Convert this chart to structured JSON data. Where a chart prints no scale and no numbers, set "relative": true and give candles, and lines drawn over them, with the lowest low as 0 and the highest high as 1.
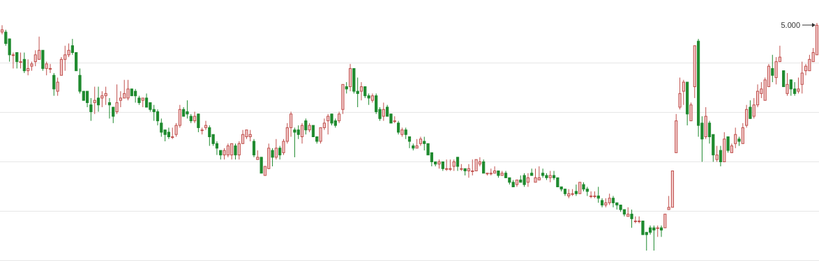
{
  "chart_data": {
    "type": "candlestick",
    "relative": true,
    "grid": "y",
    "annotations": [
      "5.000"
    ],
    "categories": [
      null,
      null,
      null,
      null,
      null,
      null,
      null,
      null,
      null,
      null,
      null,
      null,
      null,
      null,
      null,
      null,
      null,
      null,
      null,
      null,
      null,
      null,
      null,
      null,
      null,
      null,
      null,
      null,
      null,
      null,
      null,
      null,
      null,
      null,
      null,
      null,
      null,
      null,
      null,
      null,
      null,
      null,
      null,
      null,
      null,
      null,
      null,
      null,
      null,
      null,
      null,
      null,
      null,
      null,
      null,
      null,
      null,
      null,
      null,
      null,
      null,
      null,
      null,
      null,
      null,
      null,
      null,
      null,
      null,
      null,
      null,
      null,
      null,
      null,
      null,
      null,
      null,
      null,
      null,
      null,
      null,
      null,
      null,
      null,
      null,
      null,
      null,
      null,
      null,
      null,
      null,
      null,
      null,
      null,
      null,
      null,
      null,
      null,
      null,
      null,
      null,
      null,
      null,
      null,
      null,
      null,
      null,
      null,
      null,
      null,
      null,
      null,
      null,
      null,
      null,
      null,
      null,
      null,
      null,
      null,
      null,
      null,
      null,
      null,
      null,
      null,
      null,
      null,
      null,
      null,
      null,
      null,
      null,
      null,
      null,
      null,
      null,
      null,
      null,
      null,
      null,
      null,
      null,
      null,
      null,
      null,
      null,
      null,
      null,
      null,
      null,
      null,
      null,
      null,
      null,
      null,
      null,
      null,
      null,
      null,
      null,
      null,
      null,
      null,
      null,
      null,
      null,
      null,
      null,
      null,
      null,
      null,
      null,
      null,
      null,
      null,
      null,
      null,
      null,
      null,
      null,
      null,
      null,
      null,
      null,
      null,
      null,
      null,
      null,
      null,
      null,
      null,
      null,
      null,
      null,
      null,
      null,
      null,
      null,
      null,
      null,
      null,
      null,
      null,
      null,
      null,
      null,
      null,
      null,
      null,
      null,
      null,
      null,
      null,
      null,
      null,
      null,
      null,
      null,
      null,
      null
    ],
    "ohlc": [
      [
        0.96,
        0.99,
        0.95,
        0.97
      ],
      [
        0.96,
        0.97,
        0.9,
        0.91
      ],
      [
        0.93,
        0.93,
        0.83,
        0.86
      ],
      [
        0.86,
        0.87,
        0.8,
        0.86
      ],
      [
        0.87,
        0.87,
        0.8,
        0.83
      ],
      [
        0.83,
        0.87,
        0.8,
        0.83
      ],
      [
        0.84,
        0.87,
        0.78,
        0.79
      ],
      [
        0.79,
        0.84,
        0.77,
        0.8
      ],
      [
        0.81,
        0.83,
        0.79,
        0.82
      ],
      [
        0.83,
        0.88,
        0.81,
        0.86
      ],
      [
        0.84,
        0.94,
        0.84,
        0.88
      ],
      [
        0.88,
        0.88,
        0.79,
        0.8
      ],
      [
        0.8,
        0.83,
        0.77,
        0.82
      ],
      [
        0.8,
        0.82,
        0.78,
        0.8
      ],
      [
        0.77,
        0.78,
        0.68,
        0.71
      ],
      [
        0.7,
        0.76,
        0.68,
        0.74
      ],
      [
        0.77,
        0.85,
        0.77,
        0.84
      ],
      [
        0.84,
        0.9,
        0.79,
        0.86
      ],
      [
        0.86,
        0.91,
        0.85,
        0.88
      ],
      [
        0.9,
        0.93,
        0.86,
        0.87
      ],
      [
        0.87,
        0.87,
        0.79,
        0.79
      ],
      [
        0.77,
        0.8,
        0.69,
        0.7
      ],
      [
        0.7,
        0.7,
        0.66,
        0.66
      ],
      [
        0.7,
        0.7,
        0.63,
        0.65
      ],
      [
        0.64,
        0.67,
        0.57,
        0.61
      ],
      [
        0.65,
        0.72,
        0.6,
        0.66
      ],
      [
        0.67,
        0.72,
        0.61,
        0.64
      ],
      [
        0.67,
        0.7,
        0.63,
        0.68
      ],
      [
        0.68,
        0.72,
        0.64,
        0.69
      ],
      [
        0.65,
        0.67,
        0.58,
        0.64
      ],
      [
        0.63,
        0.63,
        0.56,
        0.59
      ],
      [
        0.61,
        0.73,
        0.6,
        0.65
      ],
      [
        0.66,
        0.7,
        0.63,
        0.67
      ],
      [
        0.67,
        0.75,
        0.67,
        0.69
      ],
      [
        0.67,
        0.75,
        0.66,
        0.71
      ],
      [
        0.71,
        0.71,
        0.68,
        0.68
      ],
      [
        0.7,
        0.71,
        0.65,
        0.68
      ],
      [
        0.67,
        0.68,
        0.64,
        0.65
      ],
      [
        0.66,
        0.67,
        0.63,
        0.67
      ],
      [
        0.67,
        0.69,
        0.63,
        0.63
      ],
      [
        0.65,
        0.65,
        0.61,
        0.62
      ],
      [
        0.62,
        0.64,
        0.57,
        0.61
      ],
      [
        0.61,
        0.62,
        0.55,
        0.57
      ],
      [
        0.56,
        0.58,
        0.5,
        0.52
      ],
      [
        0.53,
        0.53,
        0.48,
        0.51
      ],
      [
        0.52,
        0.54,
        0.49,
        0.5
      ],
      [
        0.5,
        0.54,
        0.49,
        0.5
      ],
      [
        0.51,
        0.56,
        0.5,
        0.55
      ],
      [
        0.55,
        0.64,
        0.54,
        0.62
      ],
      [
        0.62,
        0.63,
        0.59,
        0.59
      ],
      [
        0.61,
        0.66,
        0.58,
        0.6
      ],
      [
        0.59,
        0.6,
        0.56,
        0.57
      ],
      [
        0.57,
        0.61,
        0.56,
        0.59
      ],
      [
        0.6,
        0.6,
        0.52,
        0.54
      ],
      [
        0.53,
        0.54,
        0.51,
        0.53
      ],
      [
        0.54,
        0.57,
        0.53,
        0.55
      ],
      [
        0.54,
        0.55,
        0.46,
        0.5
      ],
      [
        0.51,
        0.51,
        0.46,
        0.47
      ],
      [
        0.47,
        0.48,
        0.42,
        0.45
      ],
      [
        0.44,
        0.44,
        0.4,
        0.42
      ],
      [
        0.42,
        0.45,
        0.4,
        0.44
      ],
      [
        0.42,
        0.47,
        0.41,
        0.46
      ],
      [
        0.42,
        0.47,
        0.4,
        0.47
      ],
      [
        0.46,
        0.47,
        0.4,
        0.42
      ],
      [
        0.42,
        0.48,
        0.4,
        0.47
      ],
      [
        0.47,
        0.53,
        0.47,
        0.51
      ],
      [
        0.5,
        0.53,
        0.49,
        0.53
      ],
      [
        0.5,
        0.53,
        0.48,
        0.51
      ],
      [
        0.48,
        0.49,
        0.41,
        0.42
      ],
      [
        0.4,
        0.44,
        0.4,
        0.41
      ],
      [
        0.41,
        0.41,
        0.34,
        0.34
      ],
      [
        0.33,
        0.37,
        0.33,
        0.37
      ],
      [
        0.36,
        0.47,
        0.36,
        0.45
      ],
      [
        0.44,
        0.45,
        0.37,
        0.41
      ],
      [
        0.41,
        0.49,
        0.4,
        0.45
      ],
      [
        0.45,
        0.46,
        0.4,
        0.42
      ],
      [
        0.43,
        0.49,
        0.42,
        0.48
      ],
      [
        0.48,
        0.56,
        0.47,
        0.54
      ],
      [
        0.54,
        0.61,
        0.5,
        0.6
      ],
      [
        0.53,
        0.54,
        0.41,
        0.52
      ],
      [
        0.53,
        0.55,
        0.49,
        0.51
      ],
      [
        0.5,
        0.56,
        0.47,
        0.55
      ],
      [
        0.57,
        0.58,
        0.51,
        0.53
      ],
      [
        0.53,
        0.56,
        0.52,
        0.55
      ],
      [
        0.55,
        0.55,
        0.5,
        0.5
      ],
      [
        0.5,
        0.5,
        0.47,
        0.48
      ],
      [
        0.48,
        0.54,
        0.47,
        0.54
      ],
      [
        0.54,
        0.58,
        0.53,
        0.56
      ],
      [
        0.57,
        0.6,
        0.51,
        0.59
      ],
      [
        0.6,
        0.6,
        0.55,
        0.56
      ],
      [
        0.57,
        0.58,
        0.54,
        0.55
      ],
      [
        0.57,
        0.61,
        0.56,
        0.6
      ],
      [
        0.62,
        0.73,
        0.6,
        0.73
      ],
      [
        0.72,
        0.74,
        0.69,
        0.71
      ],
      [
        0.72,
        0.82,
        0.7,
        0.8
      ],
      [
        0.8,
        0.8,
        0.69,
        0.7
      ],
      [
        0.7,
        0.76,
        0.63,
        0.69
      ],
      [
        0.7,
        0.74,
        0.66,
        0.72
      ],
      [
        0.72,
        0.72,
        0.67,
        0.68
      ],
      [
        0.68,
        0.69,
        0.64,
        0.67
      ],
      [
        0.66,
        0.69,
        0.65,
        0.68
      ],
      [
        0.68,
        0.69,
        0.6,
        0.61
      ],
      [
        0.62,
        0.63,
        0.57,
        0.58
      ],
      [
        0.59,
        0.65,
        0.57,
        0.62
      ],
      [
        0.63,
        0.64,
        0.59,
        0.59
      ],
      [
        0.6,
        0.6,
        0.56,
        0.56
      ],
      [
        0.57,
        0.59,
        0.56,
        0.57
      ],
      [
        0.56,
        0.57,
        0.51,
        0.52
      ],
      [
        0.51,
        0.54,
        0.5,
        0.53
      ],
      [
        0.53,
        0.54,
        0.49,
        0.51
      ],
      [
        0.5,
        0.5,
        0.45,
        0.48
      ],
      [
        0.46,
        0.47,
        0.44,
        0.45
      ],
      [
        0.45,
        0.49,
        0.45,
        0.46
      ],
      [
        0.47,
        0.5,
        0.46,
        0.49
      ],
      [
        0.48,
        0.5,
        0.44,
        0.47
      ],
      [
        0.47,
        0.47,
        0.42,
        0.42
      ],
      [
        0.43,
        0.43,
        0.37,
        0.39
      ],
      [
        0.39,
        0.39,
        0.37,
        0.38
      ],
      [
        0.38,
        0.4,
        0.36,
        0.39
      ],
      [
        0.39,
        0.39,
        0.35,
        0.36
      ],
      [
        0.36,
        0.4,
        0.35,
        0.36
      ],
      [
        0.36,
        0.4,
        0.35,
        0.36
      ],
      [
        0.37,
        0.4,
        0.35,
        0.39
      ],
      [
        0.41,
        0.41,
        0.35,
        0.37
      ],
      [
        0.36,
        0.38,
        0.35,
        0.36
      ],
      [
        0.36,
        0.36,
        0.33,
        0.35
      ],
      [
        0.35,
        0.38,
        0.32,
        0.36
      ],
      [
        0.35,
        0.4,
        0.33,
        0.35
      ],
      [
        0.35,
        0.4,
        0.35,
        0.4
      ],
      [
        0.38,
        0.41,
        0.37,
        0.39
      ],
      [
        0.39,
        0.4,
        0.34,
        0.34
      ],
      [
        0.34,
        0.34,
        0.33,
        0.34
      ],
      [
        0.34,
        0.36,
        0.33,
        0.34
      ],
      [
        0.34,
        0.37,
        0.34,
        0.35
      ],
      [
        0.35,
        0.35,
        0.32,
        0.33
      ],
      [
        0.33,
        0.35,
        0.33,
        0.34
      ],
      [
        0.34,
        0.35,
        0.32,
        0.32
      ],
      [
        0.32,
        0.32,
        0.29,
        0.3
      ],
      [
        0.3,
        0.31,
        0.28,
        0.28
      ],
      [
        0.29,
        0.31,
        0.28,
        0.31
      ],
      [
        0.31,
        0.33,
        0.3,
        0.3
      ],
      [
        0.33,
        0.34,
        0.28,
        0.29
      ],
      [
        0.3,
        0.34,
        0.28,
        0.32
      ],
      [
        0.34,
        0.36,
        0.33,
        0.33
      ],
      [
        0.3,
        0.36,
        0.3,
        0.32
      ],
      [
        0.31,
        0.37,
        0.31,
        0.32
      ],
      [
        0.34,
        0.36,
        0.32,
        0.33
      ],
      [
        0.33,
        0.34,
        0.31,
        0.32
      ],
      [
        0.32,
        0.35,
        0.3,
        0.33
      ],
      [
        0.33,
        0.35,
        0.31,
        0.32
      ],
      [
        0.32,
        0.32,
        0.28,
        0.28
      ],
      [
        0.28,
        0.28,
        0.26,
        0.27
      ],
      [
        0.27,
        0.27,
        0.24,
        0.25
      ],
      [
        0.24,
        0.27,
        0.23,
        0.25
      ],
      [
        0.25,
        0.27,
        0.24,
        0.25
      ],
      [
        0.26,
        0.29,
        0.24,
        0.25
      ],
      [
        0.25,
        0.3,
        0.25,
        0.3
      ],
      [
        0.29,
        0.3,
        0.26,
        0.27
      ],
      [
        0.27,
        0.28,
        0.24,
        0.26
      ],
      [
        0.24,
        0.26,
        0.23,
        0.24
      ],
      [
        0.24,
        0.26,
        0.23,
        0.24
      ],
      [
        0.24,
        0.28,
        0.21,
        0.23
      ],
      [
        0.22,
        0.23,
        0.19,
        0.2
      ],
      [
        0.2,
        0.23,
        0.19,
        0.21
      ],
      [
        0.21,
        0.25,
        0.2,
        0.23
      ],
      [
        0.23,
        0.24,
        0.19,
        0.21
      ],
      [
        0.21,
        0.21,
        0.18,
        0.2
      ],
      [
        0.2,
        0.2,
        0.17,
        0.18
      ],
      [
        0.18,
        0.18,
        0.15,
        0.16
      ],
      [
        0.15,
        0.19,
        0.15,
        0.16
      ],
      [
        0.16,
        0.18,
        0.1,
        0.14
      ],
      [
        0.13,
        0.15,
        0.12,
        0.13
      ],
      [
        0.13,
        0.15,
        0.12,
        0.13
      ],
      [
        0.13,
        0.13,
        0.07,
        0.07
      ],
      [
        0.08,
        0.08,
        0.0,
        0.07
      ],
      [
        0.1,
        0.11,
        0.07,
        0.08
      ],
      [
        0.1,
        0.11,
        0.0,
        0.09
      ],
      [
        0.1,
        0.11,
        0.06,
        0.1
      ],
      [
        0.1,
        0.11,
        0.06,
        0.09
      ],
      [
        0.1,
        0.16,
        0.1,
        0.16
      ],
      [
        0.18,
        0.24,
        0.18,
        0.19
      ],
      [
        0.19,
        0.35,
        0.19,
        0.35
      ],
      [
        0.43,
        0.6,
        0.43,
        0.57
      ],
      [
        0.63,
        0.76,
        0.62,
        0.69
      ],
      [
        0.7,
        0.75,
        0.64,
        0.74
      ],
      [
        0.74,
        0.74,
        0.55,
        0.6
      ],
      [
        0.57,
        0.65,
        0.57,
        0.64
      ],
      [
        0.72,
        0.9,
        0.67,
        0.9
      ],
      [
        0.92,
        0.93,
        0.5,
        0.55
      ],
      [
        0.56,
        0.59,
        0.39,
        0.49
      ],
      [
        0.5,
        0.63,
        0.49,
        0.59
      ],
      [
        0.56,
        0.57,
        0.47,
        0.5
      ],
      [
        0.51,
        0.51,
        0.39,
        0.42
      ],
      [
        0.4,
        0.46,
        0.39,
        0.42
      ],
      [
        0.44,
        0.46,
        0.37,
        0.39
      ],
      [
        0.39,
        0.52,
        0.39,
        0.49
      ],
      [
        0.5,
        0.5,
        0.43,
        0.44
      ],
      [
        0.43,
        0.47,
        0.43,
        0.46
      ],
      [
        0.47,
        0.54,
        0.45,
        0.51
      ],
      [
        0.49,
        0.5,
        0.46,
        0.48
      ],
      [
        0.47,
        0.56,
        0.47,
        0.54
      ],
      [
        0.55,
        0.64,
        0.54,
        0.62
      ],
      [
        0.63,
        0.66,
        0.58,
        0.58
      ],
      [
        0.59,
        0.67,
        0.58,
        0.64
      ],
      [
        0.64,
        0.73,
        0.63,
        0.7
      ],
      [
        0.69,
        0.74,
        0.67,
        0.71
      ],
      [
        0.66,
        0.76,
        0.66,
        0.75
      ],
      [
        0.72,
        0.82,
        0.72,
        0.81
      ],
      [
        0.8,
        0.86,
        0.74,
        0.77
      ],
      [
        0.76,
        0.85,
        0.73,
        0.83
      ],
      [
        0.83,
        0.9,
        0.83,
        0.85
      ],
      [
        0.79,
        0.79,
        0.72,
        0.72
      ],
      [
        0.69,
        0.78,
        0.68,
        0.73
      ],
      [
        0.75,
        0.75,
        0.68,
        0.71
      ],
      [
        0.71,
        0.74,
        0.68,
        0.69
      ],
      [
        0.7,
        0.76,
        0.69,
        0.71
      ],
      [
        0.73,
        0.83,
        0.69,
        0.78
      ],
      [
        0.79,
        0.82,
        0.77,
        0.81
      ],
      [
        0.79,
        0.86,
        0.79,
        0.84
      ],
      [
        0.83,
        0.89,
        0.83,
        0.87
      ],
      [
        0.86,
        1.0,
        0.86,
        0.99
      ]
    ]
  }
}
